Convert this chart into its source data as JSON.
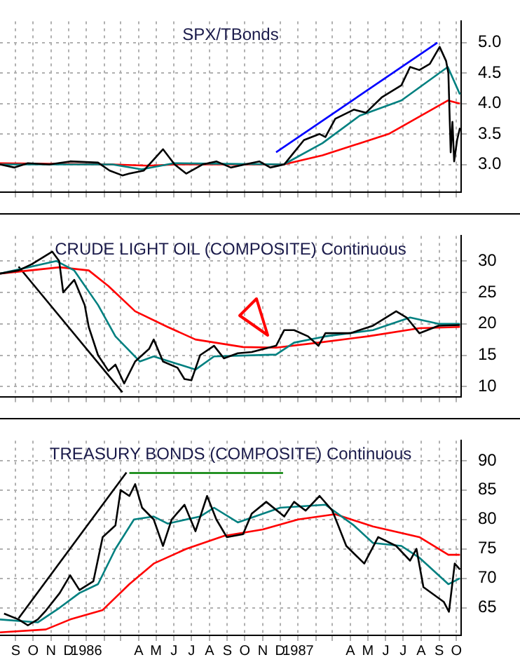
{
  "chart_data": [
    {
      "type": "line",
      "title": "SPX/TBonds",
      "xlim": [
        "1985-08-19",
        "1987-10-23"
      ],
      "ylim": [
        2.55,
        5.35
      ],
      "yticks": [
        {
          "value": 3,
          "label": "3.0"
        },
        {
          "value": 3.5,
          "label": "3.5"
        },
        {
          "value": 4,
          "label": "4.0"
        },
        {
          "value": 4.5,
          "label": "4.5"
        },
        {
          "value": 5,
          "label": "5.0"
        }
      ],
      "xticks": [
        {
          "value": "1985-09-15",
          "label": null
        },
        {
          "value": "1985-10-15",
          "label": null
        },
        {
          "value": "1985-11-15",
          "label": null
        },
        {
          "value": "1985-12-15",
          "label": null
        },
        {
          "value": "1986-01-15",
          "label": null
        },
        {
          "value": "1986-02-15",
          "label": null
        },
        {
          "value": "1986-03-15",
          "label": null
        },
        {
          "value": "1986-04-15",
          "label": null
        },
        {
          "value": "1986-05-15",
          "label": null
        },
        {
          "value": "1986-06-15",
          "label": null
        },
        {
          "value": "1986-07-15",
          "label": null
        },
        {
          "value": "1986-08-15",
          "label": null
        },
        {
          "value": "1986-09-15",
          "label": null
        },
        {
          "value": "1986-10-15",
          "label": null
        },
        {
          "value": "1986-11-15",
          "label": null
        },
        {
          "value": "1986-12-15",
          "label": null
        },
        {
          "value": "1987-01-15",
          "label": null
        },
        {
          "value": "1987-02-15",
          "label": null
        },
        {
          "value": "1987-03-15",
          "label": null
        },
        {
          "value": "1987-04-15",
          "label": null
        },
        {
          "value": "1987-05-15",
          "label": null
        },
        {
          "value": "1987-06-15",
          "label": null
        },
        {
          "value": "1987-07-15",
          "label": null
        },
        {
          "value": "1987-08-15",
          "label": null
        },
        {
          "value": "1987-09-15",
          "label": null
        },
        {
          "value": "1987-10-15",
          "label": null
        }
      ],
      "tick_labels": "y",
      "grid": true,
      "marker": "none",
      "series": [
        {
          "type": "line",
          "color": "#000000",
          "x": [
            "1985-08-19",
            "1985-09-13",
            "1985-10-06",
            "1985-11-12",
            "1985-12-18",
            "1986-02-04",
            "1986-02-24",
            "1986-03-18",
            "1986-03-30",
            "1986-04-24",
            "1986-05-27",
            "1986-06-16",
            "1986-07-06",
            "1986-08-03",
            "1986-08-27",
            "1986-09-21",
            "1986-10-15",
            "1986-11-09",
            "1986-11-28",
            "1986-12-22",
            "1987-01-08",
            "1987-01-25",
            "1987-02-21",
            "1987-03-03",
            "1987-03-20",
            "1987-04-21",
            "1987-05-12",
            "1987-06-08",
            "1987-07-12",
            "1987-07-27",
            "1987-08-12",
            "1987-08-30",
            "1987-09-16",
            "1987-09-27",
            "1987-10-01",
            "1987-10-05",
            "1987-10-08",
            "1987-10-11",
            "1987-10-16",
            "1987-10-21"
          ],
          "values": [
            3.0,
            2.95,
            3.02,
            3.0,
            3.05,
            3.03,
            2.9,
            2.82,
            2.85,
            2.9,
            3.25,
            3.0,
            2.85,
            3.0,
            3.05,
            2.95,
            3.0,
            3.05,
            2.95,
            3.0,
            3.2,
            3.4,
            3.5,
            3.45,
            3.75,
            3.9,
            3.85,
            4.1,
            4.3,
            4.6,
            4.55,
            4.65,
            4.93,
            4.7,
            4.5,
            3.2,
            3.7,
            3.05,
            3.4,
            3.6
          ]
        },
        {
          "type": "line",
          "color": "#008080",
          "x": [
            "1985-08-19",
            "1986-03-01",
            "1986-04-20",
            "1986-06-15",
            "1986-12-21",
            "1987-02-26",
            "1987-05-01",
            "1987-07-12",
            "1987-09-30",
            "1987-10-21"
          ],
          "values": [
            3.0,
            3.0,
            2.92,
            3.02,
            3.0,
            3.35,
            3.8,
            4.05,
            4.6,
            4.15
          ]
        },
        {
          "type": "line",
          "color": "#ff0000",
          "x": [
            "1985-08-19",
            "1986-03-01",
            "1986-05-01",
            "1986-06-20",
            "1986-12-21",
            "1987-02-26",
            "1987-06-20",
            "1987-09-30",
            "1987-10-21"
          ],
          "values": [
            3.02,
            3.0,
            2.98,
            3.0,
            3.0,
            3.15,
            3.5,
            4.05,
            4.0
          ]
        },
        {
          "type": "line",
          "color": "#0000ff",
          "x": [
            "1986-12-08",
            "1987-09-12"
          ],
          "values": [
            3.2,
            5.0
          ]
        }
      ]
    },
    {
      "type": "line",
      "title": "CRUDE LIGHT OIL (COMPOSITE) Continuous",
      "xlim": [
        "1985-08-19",
        "1987-10-23"
      ],
      "ylim": [
        8.4,
        34
      ],
      "yticks": [
        10,
        15,
        20,
        25,
        30
      ],
      "xticks": [
        {
          "value": "1985-09-15",
          "label": null
        },
        {
          "value": "1985-10-15",
          "label": null
        },
        {
          "value": "1985-11-15",
          "label": null
        },
        {
          "value": "1985-12-15",
          "label": null
        },
        {
          "value": "1986-01-15",
          "label": null
        },
        {
          "value": "1986-02-15",
          "label": null
        },
        {
          "value": "1986-03-15",
          "label": null
        },
        {
          "value": "1986-04-15",
          "label": null
        },
        {
          "value": "1986-05-15",
          "label": null
        },
        {
          "value": "1986-06-15",
          "label": null
        },
        {
          "value": "1986-07-15",
          "label": null
        },
        {
          "value": "1986-08-15",
          "label": null
        },
        {
          "value": "1986-09-15",
          "label": null
        },
        {
          "value": "1986-10-15",
          "label": null
        },
        {
          "value": "1986-11-15",
          "label": null
        },
        {
          "value": "1986-12-15",
          "label": null
        },
        {
          "value": "1987-01-15",
          "label": null
        },
        {
          "value": "1987-02-15",
          "label": null
        },
        {
          "value": "1987-03-15",
          "label": null
        },
        {
          "value": "1987-04-15",
          "label": null
        },
        {
          "value": "1987-05-15",
          "label": null
        },
        {
          "value": "1987-06-15",
          "label": null
        },
        {
          "value": "1987-07-15",
          "label": null
        },
        {
          "value": "1987-08-15",
          "label": null
        },
        {
          "value": "1987-09-15",
          "label": null
        },
        {
          "value": "1987-10-15",
          "label": null
        }
      ],
      "tick_labels": "y",
      "grid": true,
      "marker": "none",
      "series": [
        {
          "type": "line",
          "color": "#000000",
          "x": [
            "1985-08-19",
            "1985-09-20",
            "1985-10-13",
            "1985-11-17",
            "1985-11-29",
            "1985-12-06",
            "1985-12-25",
            "1986-01-12",
            "1986-01-19",
            "1986-02-04",
            "1986-02-22",
            "1986-03-06",
            "1986-03-21",
            "1986-04-09",
            "1986-05-03",
            "1986-05-11",
            "1986-05-27",
            "1986-06-21",
            "1986-07-03",
            "1986-07-15",
            "1986-07-30",
            "1986-08-23",
            "1986-09-09",
            "1986-10-03",
            "1986-10-27",
            "1986-12-08",
            "1986-12-22",
            "1987-01-08",
            "1987-02-01",
            "1987-02-19",
            "1987-03-03",
            "1987-04-15",
            "1987-05-24",
            "1987-07-03",
            "1987-07-21",
            "1987-08-12",
            "1987-09-14",
            "1987-10-21"
          ],
          "values": [
            28,
            28.5,
            29.5,
            31.5,
            30,
            25,
            27,
            23,
            19.5,
            15,
            12.5,
            13.5,
            10.5,
            14,
            16,
            17.5,
            14,
            13,
            11.2,
            11,
            15,
            16.5,
            14.5,
            15.3,
            15.5,
            16.5,
            19,
            19,
            18,
            16.5,
            18.5,
            18.5,
            19.7,
            22,
            21,
            18.5,
            19.7,
            19.8
          ]
        },
        {
          "type": "line",
          "color": "#008080",
          "x": [
            "1985-08-19",
            "1985-11-24",
            "1985-12-25",
            "1986-02-04",
            "1986-03-06",
            "1986-04-17",
            "1986-05-11",
            "1986-07-22",
            "1986-08-23",
            "1986-12-08",
            "1987-01-08",
            "1987-03-03",
            "1987-05-24",
            "1987-07-27",
            "1987-09-14",
            "1987-10-21"
          ],
          "values": [
            28,
            30,
            28.5,
            23,
            18,
            14,
            14.8,
            12.7,
            14.8,
            15.1,
            17,
            18,
            19,
            21,
            20,
            20
          ]
        },
        {
          "type": "line",
          "color": "#ff0000",
          "x": [
            "1985-08-19",
            "1985-11-30",
            "1986-01-19",
            "1986-02-22",
            "1986-04-09",
            "1986-06-04",
            "1986-07-22",
            "1986-10-12",
            "1986-12-08",
            "1987-02-19",
            "1987-05-15",
            "1987-08-12",
            "1987-10-21"
          ],
          "values": [
            28,
            29,
            28.5,
            26,
            22,
            19.5,
            17.5,
            16.3,
            16.2,
            17,
            18,
            19.3,
            19.5
          ]
        },
        {
          "type": "line",
          "color": "#000000",
          "x": [
            "1985-09-20",
            "1986-03-18"
          ],
          "values": [
            29.1,
            9.1
          ]
        }
      ]
    },
    {
      "type": "line",
      "title": "TREASURY BONDS (COMPOSITE) Continuous",
      "xlim": [
        "1985-08-19",
        "1987-10-23"
      ],
      "ylim": [
        60.3,
        93.4
      ],
      "yticks": [
        65,
        70,
        75,
        80,
        85,
        90
      ],
      "xticks": [
        {
          "value": "1985-09-15",
          "label": "S"
        },
        {
          "value": "1985-10-15",
          "label": "O"
        },
        {
          "value": "1985-11-15",
          "label": "N"
        },
        {
          "value": "1985-12-15",
          "label": "D"
        },
        {
          "value": "1986-01-15",
          "label": "1986"
        },
        {
          "value": "1986-02-15",
          "label": null
        },
        {
          "value": "1986-03-15",
          "label": null
        },
        {
          "value": "1986-04-15",
          "label": "A"
        },
        {
          "value": "1986-05-15",
          "label": "M"
        },
        {
          "value": "1986-06-15",
          "label": "J"
        },
        {
          "value": "1986-07-15",
          "label": "J"
        },
        {
          "value": "1986-08-15",
          "label": "A"
        },
        {
          "value": "1986-09-15",
          "label": "S"
        },
        {
          "value": "1986-10-15",
          "label": "O"
        },
        {
          "value": "1986-11-15",
          "label": "N"
        },
        {
          "value": "1986-12-15",
          "label": "D"
        },
        {
          "value": "1987-01-15",
          "label": "1987"
        },
        {
          "value": "1987-02-15",
          "label": null
        },
        {
          "value": "1987-03-15",
          "label": null
        },
        {
          "value": "1987-04-15",
          "label": "A"
        },
        {
          "value": "1987-05-15",
          "label": "M"
        },
        {
          "value": "1987-06-15",
          "label": "J"
        },
        {
          "value": "1987-07-15",
          "label": "J"
        },
        {
          "value": "1987-08-15",
          "label": "A"
        },
        {
          "value": "1987-09-15",
          "label": "S"
        },
        {
          "value": "1987-10-15",
          "label": "O"
        }
      ],
      "grid": true,
      "marker": "none",
      "series": [
        {
          "type": "line",
          "color": "#000000",
          "x": [
            "1985-08-26",
            "1985-09-20",
            "1985-10-06",
            "1985-10-23",
            "1985-11-06",
            "1985-11-30",
            "1985-12-18",
            "1986-01-03",
            "1986-01-27",
            "1986-02-12",
            "1986-03-06",
            "1986-03-15",
            "1986-03-30",
            "1986-04-09",
            "1986-04-21",
            "1986-05-11",
            "1986-05-27",
            "1986-06-11",
            "1986-07-03",
            "1986-07-22",
            "1986-08-11",
            "1986-08-27",
            "1986-09-14",
            "1986-10-12",
            "1986-10-27",
            "1986-11-21",
            "1986-12-22",
            "1987-01-08",
            "1987-01-28",
            "1987-02-21",
            "1987-03-15",
            "1987-04-08",
            "1987-05-09",
            "1987-06-02",
            "1987-07-03",
            "1987-07-27",
            "1987-08-07",
            "1987-08-19",
            "1987-09-23",
            "1987-10-02",
            "1987-10-12",
            "1987-10-21"
          ],
          "values": [
            64,
            63,
            62,
            63,
            64.5,
            67.5,
            70.5,
            68,
            69.5,
            77,
            79,
            85,
            84,
            86,
            82,
            80,
            75.5,
            80,
            82.5,
            78,
            84,
            80,
            77,
            77.5,
            81,
            83,
            80.5,
            83,
            81.5,
            84,
            81.5,
            75.5,
            72.5,
            77,
            75.5,
            73,
            75,
            68.5,
            66,
            64.3,
            72.5,
            71.5
          ]
        },
        {
          "type": "line",
          "color": "#008080",
          "x": [
            "1985-08-19",
            "1985-10-23",
            "1985-11-30",
            "1986-01-03",
            "1986-02-04",
            "1986-03-06",
            "1986-04-07",
            "1986-05-11",
            "1986-06-04",
            "1986-07-30",
            "1986-08-23",
            "1986-10-03",
            "1986-12-15",
            "1987-03-03",
            "1987-04-21",
            "1987-05-24",
            "1987-07-12",
            "1987-08-12",
            "1987-10-01",
            "1987-10-21"
          ],
          "values": [
            63,
            62.5,
            65,
            67.5,
            69,
            75,
            80,
            80.5,
            79.3,
            80.5,
            82,
            79.5,
            82,
            82.5,
            79,
            76,
            75.5,
            73.5,
            69,
            70
          ]
        },
        {
          "type": "line",
          "color": "#ff0000",
          "x": [
            "1985-08-19",
            "1985-11-06",
            "1985-12-18",
            "1986-02-12",
            "1986-03-30",
            "1986-05-11",
            "1986-07-06",
            "1986-09-09",
            "1986-11-15",
            "1987-01-15",
            "1987-03-20",
            "1987-05-24",
            "1987-08-12",
            "1987-10-01",
            "1987-10-21"
          ],
          "values": [
            60.8,
            61.3,
            63,
            64.6,
            69,
            72.5,
            75,
            77.2,
            78.3,
            80,
            80.9,
            78.8,
            77,
            74,
            74
          ]
        },
        {
          "type": "line",
          "color": "#000000",
          "x": [
            "1985-09-20",
            "1986-03-25"
          ],
          "values": [
            63.2,
            88
          ]
        },
        {
          "type": "line",
          "color": "#008000",
          "x": [
            "1986-03-30",
            "1986-12-20"
          ],
          "values": [
            87.9,
            87.9
          ]
        }
      ]
    }
  ]
}
